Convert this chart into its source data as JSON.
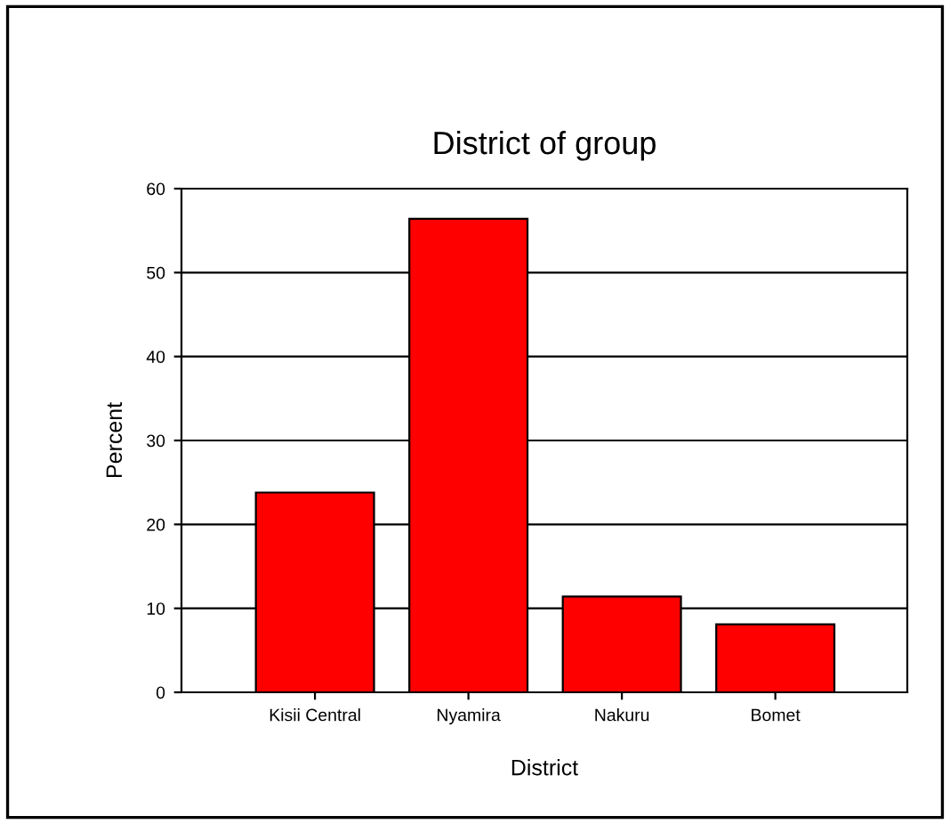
{
  "chart_data": {
    "type": "bar",
    "title": "District of group",
    "xlabel": "District",
    "ylabel": "Percent",
    "categories": [
      "Kisii Central",
      "Nyamira",
      "Nakuru",
      "Bomet"
    ],
    "values": [
      23.8,
      56.4,
      11.4,
      8.1
    ],
    "color": "#ff0000",
    "ylim": [
      0,
      60
    ],
    "yticks": [
      0,
      10,
      20,
      30,
      40,
      50,
      60
    ],
    "grid": "y",
    "legend": false
  }
}
